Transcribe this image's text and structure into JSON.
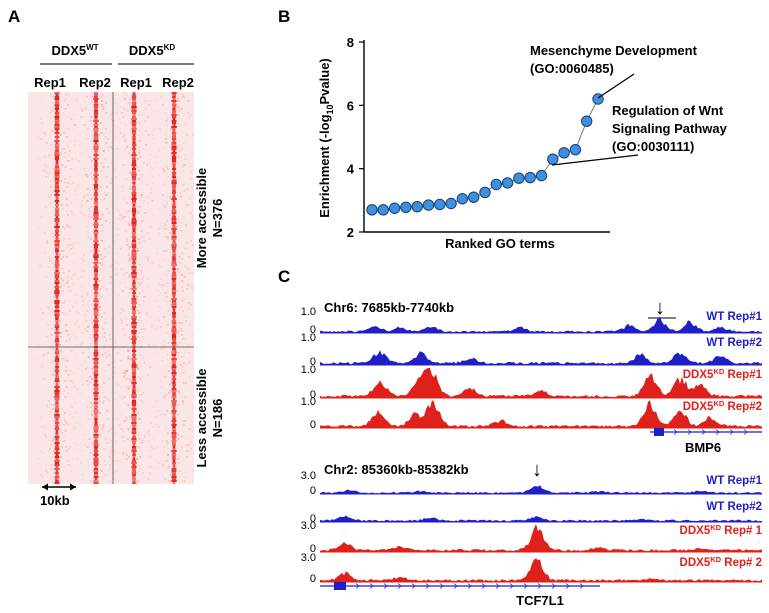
{
  "panel_a": {
    "label": "A",
    "groups": [
      {
        "name": "DDX5",
        "sup": "WT"
      },
      {
        "name": "DDX5",
        "sup": "KD"
      }
    ],
    "replicates": [
      "Rep1",
      "Rep2",
      "Rep1",
      "Rep2"
    ],
    "clusters": [
      {
        "title": "More accessible",
        "count": "N=376"
      },
      {
        "title": "Less accessible",
        "count": "N=186"
      }
    ],
    "scale_label": "10kb",
    "colors": {
      "heat": "#e0201a",
      "bg": "#fbeeee"
    }
  },
  "panel_b": {
    "label": "B",
    "annotations": [
      {
        "line1": "Mesenchyme Development",
        "line2": "(GO:0060485)"
      },
      {
        "line1": "Regulation of Wnt",
        "line2": "Signaling Pathway",
        "line3": "(GO:0030111)"
      }
    ],
    "chart_data": {
      "type": "scatter",
      "xlabel": "Ranked GO terms",
      "ylabel_prefix": "Enrichment (-log",
      "ylabel_sub": "10",
      "ylabel_suffix": "Pvalue)",
      "ylim": [
        2,
        8
      ],
      "yticks": [
        "2",
        "4",
        "6",
        "8"
      ],
      "values": [
        2.7,
        2.7,
        2.75,
        2.78,
        2.8,
        2.85,
        2.87,
        2.9,
        3.05,
        3.1,
        3.25,
        3.5,
        3.55,
        3.7,
        3.72,
        3.78,
        4.3,
        4.5,
        4.6,
        5.5,
        6.2
      ],
      "point_color": "#3d8fe0"
    }
  },
  "panel_c": {
    "label": "C",
    "loci": [
      {
        "region": "Chr6: 7685kb-7740kb",
        "gene": "BMP6",
        "arrow": "↓",
        "tracks": [
          {
            "name": "WT Rep#1",
            "max": "1.0",
            "min": "0",
            "color": "#1f1fc8"
          },
          {
            "name": "WT Rep#2",
            "max": "1.0",
            "min": "0",
            "color": "#1f1fc8"
          },
          {
            "name": "DDX5",
            "sup": "KD",
            "suffix": " Rep#1",
            "max": "1.0",
            "min": "0",
            "color": "#e0201a"
          },
          {
            "name": "DDX5",
            "sup": "KD",
            "suffix": " Rep#2",
            "max": "1.0",
            "min": "0",
            "color": "#e0201a"
          }
        ]
      },
      {
        "region": "Chr2: 85360kb-85382kb",
        "gene": "TCF7L1",
        "arrow": "↓",
        "tracks": [
          {
            "name": "WT Rep#1",
            "max": "3.0",
            "min": "0",
            "color": "#1f1fc8"
          },
          {
            "name": "WT Rep#2",
            "max": "",
            "min": "0",
            "color": "#1f1fc8"
          },
          {
            "name": "DDX5",
            "sup": "KD",
            "suffix": " Rep# 1",
            "max": "3.0",
            "min": "0",
            "color": "#e0201a"
          },
          {
            "name": "DDX5",
            "sup": "KD",
            "suffix": " Rep# 2",
            "max": "3.0",
            "min": "0",
            "color": "#e0201a"
          }
        ]
      }
    ]
  }
}
